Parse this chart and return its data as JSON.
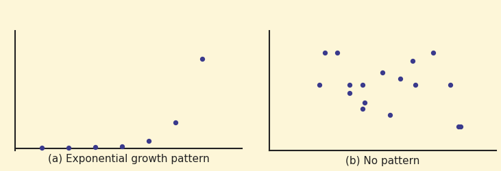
{
  "bg_color": "#fdf6d8",
  "fig_bg_color": "#fdf6d8",
  "dot_color": "#3a3a8c",
  "dot_size": 18,
  "ax1_title": "(a) Exponential growth pattern",
  "ax2_title": "(b) No pattern",
  "title_fontsize": 11,
  "exp_x": [
    1,
    2,
    3,
    4,
    5,
    6,
    7
  ],
  "exp_y": [
    0.02,
    0.04,
    0.06,
    0.1,
    0.35,
    1.2,
    4.2
  ],
  "rand_x": [
    2.2,
    2.7,
    3.2,
    3.2,
    3.7,
    3.8,
    4.5,
    5.2,
    5.8,
    2.0,
    6.5,
    3.7,
    4.8,
    5.7,
    7.2,
    7.5,
    7.6
  ],
  "rand_y": [
    8.2,
    8.2,
    5.5,
    4.8,
    5.5,
    4.0,
    6.5,
    6.0,
    5.5,
    5.5,
    8.2,
    3.5,
    3.0,
    7.5,
    5.5,
    2.0,
    2.0
  ],
  "xlim1": [
    0,
    8.5
  ],
  "ylim1": [
    -0.1,
    5.5
  ],
  "xlim2": [
    0,
    9
  ],
  "ylim2": [
    0,
    10
  ],
  "spine_color": "#222222"
}
